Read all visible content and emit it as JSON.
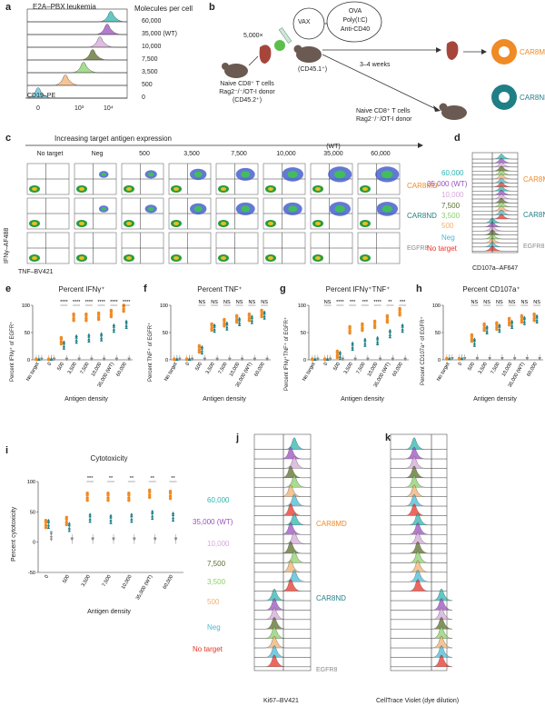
{
  "colors": {
    "orange": "#f08a24",
    "teal": "#1f7f86",
    "gray": "#8a8a8a",
    "c60000": "#2cb5b0",
    "c35000": "#9b4fc0",
    "c10000": "#d4a8d8",
    "c7500": "#5a6e2a",
    "c3500": "#8bd06a",
    "c500": "#f2b070",
    "c0": "#58c4dc",
    "neg": "#49b9d6",
    "notarget": "#e8342a"
  },
  "panel_a": {
    "label": "a",
    "title": "E2A–PBX leukemia",
    "header": "Molecules per cell",
    "molecules": [
      "60,000",
      "35,000 (WT)",
      "10,000",
      "7,500",
      "3,500",
      "500",
      "0"
    ],
    "xlabel": "CD19–PE",
    "ticks": [
      "0",
      "10³",
      "10⁴"
    ]
  },
  "panel_b": {
    "label": "b",
    "count": "5,000×",
    "vax": "VAX",
    "vax_items": [
      "OVA",
      "Poly(I:C)",
      "Anti-CD40"
    ],
    "recipient": "(CD45.1⁺)",
    "duration": "3–4 weeks",
    "donor1": [
      "Naive CD8⁺ T cells",
      "Rag2⁻/⁻/OT-I donor",
      "(CD45.2⁺)"
    ],
    "donor2": [
      "Naive CD8⁺ T cells",
      "Rag2⁻/⁻/OT-I donor"
    ],
    "car_md": "CAR8MD",
    "car_nd": "CAR8ND"
  },
  "panel_c": {
    "label": "c",
    "header": "Increasing target antigen expression",
    "cols": [
      "No target",
      "Neg",
      "500",
      "3,500",
      "7,500",
      "10,000",
      "(WT)\n35,000",
      "60,000"
    ],
    "rows": [
      "CAR8MD",
      "CAR8ND",
      "EGFR8"
    ],
    "ylabel": "IFNγ–AF488",
    "xlabel": "TNF–BV421"
  },
  "panel_d": {
    "label": "d",
    "labels": [
      "60,000",
      "35,000 (WT)",
      "10,000",
      "7,500",
      "3,500",
      "500",
      "Neg",
      "No target"
    ],
    "groups": [
      "CAR8MD",
      "CAR8ND",
      "EGFR8"
    ],
    "xlabel": "CD107a–AF647"
  },
  "panel_e": {
    "label": "e",
    "title": "Percent IFNγ⁺",
    "ylabel": "Percent IFNγ⁺ of EGFR⁺",
    "xlabel": "Antigen density",
    "sig": [
      "****",
      "****",
      "****",
      "****",
      "****",
      "****"
    ]
  },
  "panel_f": {
    "label": "f",
    "title": "Percent TNF⁺",
    "ylabel": "Percent TNF⁺ of EGFR⁺",
    "xlabel": "Antigen density",
    "sig": [
      "NS",
      "NS",
      "NS",
      "NS",
      "NS",
      "NS"
    ]
  },
  "panel_g": {
    "label": "g",
    "title": "Percent IFNγ⁺TNF⁺",
    "ylabel": "Percent IFNγ⁺TNF⁺ of EGFR⁺",
    "xlabel": "Antigen density",
    "sig": [
      "NS",
      "****",
      "***",
      "***",
      "****",
      "**",
      "***"
    ]
  },
  "panel_h": {
    "label": "h",
    "title": "Percent CD107a⁺",
    "ylabel": "Percent CD107a⁺ of EGFR⁺",
    "xlabel": "Antigen density",
    "sig": [
      "NS",
      "NS",
      "NS",
      "NS",
      "NS",
      "NS"
    ]
  },
  "panel_i": {
    "label": "i",
    "title": "Cytotoxicity",
    "ylabel": "Percent cytotoxicity",
    "xlabel": "Antigen density",
    "sig": [
      "***",
      "**",
      "**",
      "**",
      "**"
    ]
  },
  "panel_j": {
    "label": "j",
    "labels": [
      "60,000",
      "35,000 (WT)",
      "10,000",
      "7,500",
      "3,500",
      "500",
      "Neg",
      "No target"
    ],
    "groups": [
      "CAR8MD",
      "CAR8ND",
      "EGFR8"
    ],
    "xlabel": "Ki67–BV421"
  },
  "panel_k": {
    "label": "k",
    "xlabel": "CellTrace Violet (dye dilution)"
  },
  "chart_data": [
    {
      "type": "scatter",
      "title": "Percent IFNγ⁺",
      "categories": [
        "No target",
        "0",
        "500",
        "3,500",
        "7,500",
        "10,000",
        "35,000 (WT)",
        "60,000"
      ],
      "series": [
        {
          "name": "CAR8MD",
          "values": [
            1,
            1,
            35,
            78,
            78,
            80,
            85,
            95
          ]
        },
        {
          "name": "CAR8ND",
          "values": [
            1,
            1,
            27,
            38,
            40,
            42,
            58,
            65
          ]
        },
        {
          "name": "EGFR8",
          "values": [
            1,
            1,
            1,
            1,
            1,
            1,
            1,
            1
          ]
        }
      ],
      "ylabel": "Percent IFNγ⁺ of EGFR⁺",
      "ylim": [
        0,
        100
      ]
    },
    {
      "type": "scatter",
      "title": "Percent TNF⁺",
      "categories": [
        "No target",
        "0",
        "500",
        "3,500",
        "7,500",
        "10,000",
        "35,000 (WT)",
        "60,000"
      ],
      "series": [
        {
          "name": "CAR8MD",
          "values": [
            1,
            1,
            20,
            60,
            68,
            75,
            78,
            85
          ]
        },
        {
          "name": "CAR8ND",
          "values": [
            1,
            1,
            18,
            58,
            62,
            70,
            74,
            82
          ]
        },
        {
          "name": "EGFR8",
          "values": [
            1,
            1,
            1,
            1,
            1,
            1,
            1,
            1
          ]
        }
      ],
      "ylabel": "Percent TNF⁺ of EGFR⁺",
      "ylim": [
        0,
        100
      ]
    },
    {
      "type": "scatter",
      "title": "Percent IFNγ⁺TNF⁺",
      "categories": [
        "No target",
        "0",
        "500",
        "3,500",
        "7,500",
        "10,000",
        "35,000 (WT)",
        "60,000"
      ],
      "series": [
        {
          "name": "CAR8MD",
          "values": [
            1,
            1,
            10,
            55,
            60,
            65,
            75,
            88
          ]
        },
        {
          "name": "CAR8ND",
          "values": [
            1,
            1,
            8,
            25,
            32,
            35,
            48,
            58
          ]
        },
        {
          "name": "EGFR8",
          "values": [
            1,
            1,
            1,
            1,
            1,
            1,
            1,
            1
          ]
        }
      ],
      "ylabel": "Percent IFNγ⁺TNF⁺ of EGFR⁺",
      "ylim": [
        0,
        100
      ]
    },
    {
      "type": "scatter",
      "title": "Percent CD107a⁺",
      "categories": [
        "No target",
        "0",
        "500",
        "3,500",
        "7,500",
        "10,000",
        "35,000 (WT)",
        "60,000"
      ],
      "series": [
        {
          "name": "CAR8MD",
          "values": [
            2,
            2,
            40,
            60,
            62,
            70,
            75,
            78
          ]
        },
        {
          "name": "CAR8ND",
          "values": [
            2,
            2,
            32,
            55,
            58,
            65,
            72,
            75
          ]
        },
        {
          "name": "EGFR8",
          "values": [
            2,
            2,
            2,
            2,
            2,
            2,
            2,
            2
          ]
        }
      ],
      "ylabel": "Percent CD107a⁺ of EGFR⁺",
      "ylim": [
        0,
        100
      ]
    },
    {
      "type": "scatter",
      "title": "Cytotoxicity",
      "categories": [
        "0",
        "500",
        "3,500",
        "7,500",
        "10,000",
        "35,000 (WT)",
        "60,000"
      ],
      "series": [
        {
          "name": "CAR8MD",
          "values": [
            30,
            35,
            75,
            75,
            75,
            80,
            78
          ]
        },
        {
          "name": "CAR8ND",
          "values": [
            30,
            25,
            40,
            38,
            40,
            45,
            42
          ]
        },
        {
          "name": "EGFR8",
          "values": [
            10,
            5,
            5,
            5,
            5,
            5,
            5
          ]
        }
      ],
      "ylabel": "Percent cytotoxicity",
      "ylim": [
        -50,
        100
      ]
    }
  ]
}
